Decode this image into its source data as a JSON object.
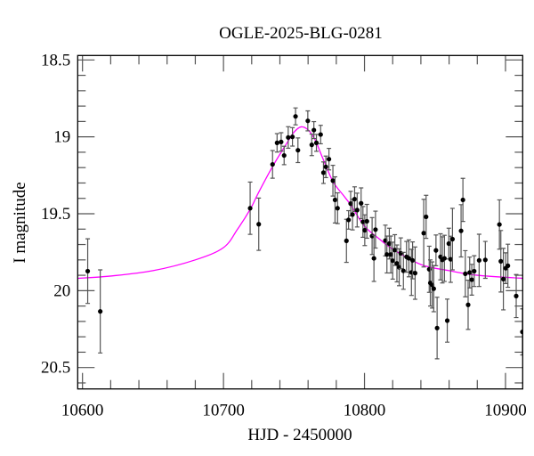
{
  "chart_data": {
    "type": "scatter",
    "title": "OGLE-2025-BLG-0281",
    "xlabel": "HJD - 2450000",
    "ylabel": "I magnitude",
    "xlim": [
      10596.6,
      10912.2
    ],
    "ylim": [
      20.639,
      18.471
    ],
    "y_inverted": true,
    "grid": false,
    "x_major_ticks": [
      10600,
      10700,
      10800,
      10900
    ],
    "x_tick_labels": [
      "10600",
      "10700",
      "10800",
      "10900"
    ],
    "x_minor_step": 20,
    "y_major_ticks": [
      18.5,
      19,
      19.5,
      20,
      20.5
    ],
    "y_tick_labels": [
      "18.5",
      "19",
      "19.5",
      "20",
      "20.5"
    ],
    "y_minor_step": 0.1,
    "colors": {
      "points": "#000000",
      "errorbars": "#555555",
      "model": "#ff00ff",
      "frame": "#000000"
    },
    "series": [
      {
        "type": "scatter-errorbar",
        "x": [
          10603.7,
          10612.6,
          10718.9,
          10725.0,
          10734.8,
          10738.0,
          10740.9,
          10743.0,
          10745.9,
          10748.9,
          10751.1,
          10752.8,
          10759.8,
          10762.6,
          10764.1,
          10765.9,
          10768.9,
          10770.9,
          10772.6,
          10774.8,
          10777.6,
          10779.1,
          10780.9,
          10787.2,
          10788.7,
          10790.2,
          10791.5,
          10793.0,
          10794.8,
          10797.6,
          10798.9,
          10800.2,
          10801.7,
          10805.4,
          10806.7,
          10807.8,
          10814.8,
          10815.9,
          10817.6,
          10818.7,
          10820.0,
          10821.5,
          10823.0,
          10824.6,
          10825.7,
          10827.6,
          10829.8,
          10831.5,
          10833.3,
          10834.1,
          10835.9,
          10842.0,
          10843.7,
          10845.9,
          10846.7,
          10848.0,
          10849.1,
          10850.7,
          10851.5,
          10853.9,
          10855.2,
          10856.7,
          10858.7,
          10859.8,
          10861.1,
          10862.4,
          10868.5,
          10869.8,
          10871.5,
          10873.5,
          10874.6,
          10876.1,
          10877.8,
          10881.3,
          10885.7,
          10895.7,
          10896.7,
          10898.5,
          10900.2,
          10901.7,
          10907.6,
          10912.0
        ],
        "y": [
          19.873,
          20.135,
          19.464,
          19.568,
          19.179,
          19.039,
          19.033,
          19.121,
          19.004,
          19.0,
          18.867,
          19.087,
          18.896,
          19.052,
          18.956,
          19.039,
          18.985,
          19.233,
          19.195,
          19.145,
          19.285,
          19.41,
          19.464,
          19.676,
          19.54,
          19.434,
          19.505,
          19.405,
          19.476,
          19.432,
          19.553,
          19.607,
          19.549,
          19.645,
          19.79,
          19.603,
          19.674,
          19.765,
          19.694,
          19.765,
          19.805,
          19.736,
          19.823,
          19.848,
          19.757,
          19.871,
          19.78,
          19.79,
          19.881,
          19.803,
          19.886,
          19.626,
          19.52,
          19.861,
          19.95,
          19.963,
          19.987,
          19.738,
          20.243,
          19.78,
          19.8,
          19.79,
          20.195,
          19.694,
          19.796,
          19.665,
          19.611,
          19.41,
          19.89,
          20.092,
          19.882,
          19.929,
          19.873,
          19.803,
          19.8,
          19.57,
          19.809,
          19.925,
          19.854,
          19.838,
          20.035,
          20.268
        ],
        "yerr": [
          0.21,
          0.27,
          0.17,
          0.17,
          0.09,
          0.06,
          0.06,
          0.06,
          0.07,
          0.06,
          0.055,
          0.08,
          0.065,
          0.07,
          0.055,
          0.055,
          0.06,
          0.07,
          0.07,
          0.07,
          0.1,
          0.15,
          0.1,
          0.14,
          0.06,
          0.08,
          0.1,
          0.08,
          0.11,
          0.1,
          0.1,
          0.1,
          0.11,
          0.12,
          0.15,
          0.12,
          0.1,
          0.12,
          0.1,
          0.12,
          0.12,
          0.1,
          0.12,
          0.12,
          0.1,
          0.12,
          0.1,
          0.12,
          0.15,
          0.12,
          0.17,
          0.22,
          0.14,
          0.15,
          0.15,
          0.15,
          0.15,
          0.1,
          0.2,
          0.15,
          0.15,
          0.15,
          0.14,
          0.1,
          0.15,
          0.2,
          0.17,
          0.14,
          0.15,
          0.16,
          0.1,
          0.1,
          0.1,
          0.17,
          0.12,
          0.16,
          0.2,
          0.2,
          0.1,
          0.14,
          0.14,
          0.15
        ]
      },
      {
        "type": "line",
        "x": [
          10596.6,
          10620,
          10650,
          10680,
          10700,
          10710,
          10719,
          10725,
          10735,
          10745,
          10750,
          10755,
          10760,
          10765,
          10770,
          10777.6,
          10785,
          10790,
          10800,
          10810,
          10820,
          10840,
          10860,
          10880,
          10912.2
        ],
        "y": [
          19.92,
          19.905,
          19.87,
          19.8,
          19.72,
          19.6,
          19.47,
          19.36,
          19.19,
          19.04,
          18.97,
          18.935,
          18.955,
          19.02,
          19.13,
          19.29,
          19.38,
          19.44,
          19.58,
          19.66,
          19.73,
          19.83,
          19.87,
          19.9,
          19.92
        ]
      }
    ]
  }
}
